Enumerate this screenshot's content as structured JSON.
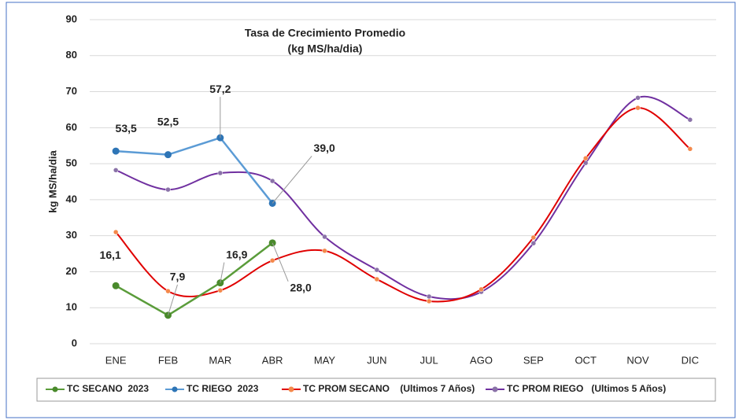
{
  "chart_data": {
    "type": "line",
    "title": "Tasa de Crecimiento Promedio",
    "subtitle": "(kg MS/ha/dia)",
    "y_label": "kg MS/ha/dia",
    "categories": [
      "ENE",
      "FEB",
      "MAR",
      "ABR",
      "MAY",
      "JUN",
      "JUL",
      "AGO",
      "SEP",
      "OCT",
      "NOV",
      "DIC"
    ],
    "ylim": [
      0,
      90
    ],
    "yticks": [
      0,
      10,
      20,
      30,
      40,
      50,
      60,
      70,
      80,
      90
    ],
    "grid": true,
    "legend": "bottom",
    "series": [
      {
        "name": "TC SECANO  2023",
        "color": "#5a9c3a",
        "marker_color": "#4a8a2c",
        "smooth": false,
        "values": [
          16.1,
          7.9,
          16.9,
          28.0,
          null,
          null,
          null,
          null,
          null,
          null,
          null,
          null
        ],
        "value_labels": [
          "16,1",
          "7,9",
          "16,9",
          "28,0",
          null,
          null,
          null,
          null,
          null,
          null,
          null,
          null
        ]
      },
      {
        "name": "TC RIEGO  2023",
        "color": "#5b9bd5",
        "marker_color": "#2e75b6",
        "smooth": false,
        "values": [
          53.5,
          52.5,
          57.2,
          39.0,
          null,
          null,
          null,
          null,
          null,
          null,
          null,
          null
        ],
        "value_labels": [
          "53,5",
          "52,5",
          "57,2",
          "39,0",
          null,
          null,
          null,
          null,
          null,
          null,
          null,
          null
        ]
      },
      {
        "name": "TC PROM SECANO    (Ultimos 7 Años)",
        "color": "#e00000",
        "marker_color": "#f4894b",
        "smooth": true,
        "values": [
          31.0,
          14.6,
          14.8,
          23.1,
          25.8,
          17.9,
          11.8,
          15.1,
          29.5,
          51.5,
          65.5,
          54.1
        ]
      },
      {
        "name": "TC PROM RIEGO   (Ultimos 5 Años)",
        "color": "#7030a0",
        "marker_color": "#8a72a8",
        "smooth": true,
        "values": [
          48.2,
          42.8,
          47.4,
          45.2,
          29.7,
          20.5,
          13.1,
          14.4,
          27.9,
          50.2,
          68.3,
          62.2
        ]
      }
    ]
  }
}
